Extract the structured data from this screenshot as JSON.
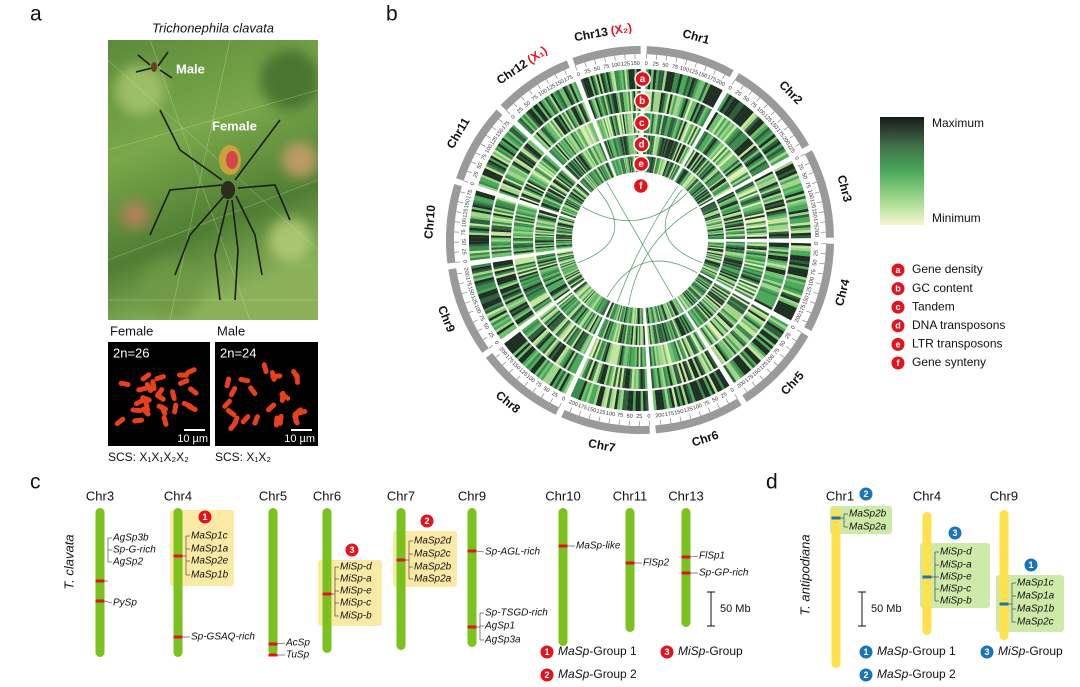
{
  "panel_a": {
    "label": "a",
    "species": "Trichonephila clavata",
    "photo_labels": [
      "Male",
      "Female"
    ],
    "karyotypes": [
      {
        "sex": "Female",
        "count": "2n=26",
        "scale": "10 µm",
        "scs": "SCS: X₁X₁X₂X₂"
      },
      {
        "sex": "Male",
        "count": "2n=24",
        "scale": "10 µm",
        "scs": "SCS: X₁X₂"
      }
    ]
  },
  "panel_b": {
    "label": "b",
    "chromosomes": [
      {
        "name": "Chr1",
        "ticks": [
          0,
          25,
          50,
          75,
          100,
          125,
          150,
          175,
          200
        ]
      },
      {
        "name": "Chr2",
        "ticks": [
          0,
          25,
          50,
          75,
          100,
          125,
          150,
          175,
          200,
          225
        ]
      },
      {
        "name": "Chr3",
        "ticks": [
          0,
          25,
          50,
          75,
          100,
          125,
          150,
          175,
          200
        ]
      },
      {
        "name": "Chr4",
        "ticks": [
          0,
          25,
          50,
          75,
          100,
          125,
          150,
          175,
          200
        ]
      },
      {
        "name": "Chr5",
        "ticks": [
          0,
          25,
          50,
          75,
          100,
          125,
          150,
          175,
          200
        ]
      },
      {
        "name": "Chr6",
        "ticks": [
          0,
          25,
          50,
          75,
          100,
          125,
          150,
          175,
          200
        ]
      },
      {
        "name": "Chr7",
        "ticks": [
          0,
          25,
          50,
          75,
          100,
          125,
          150,
          175,
          200
        ]
      },
      {
        "name": "Chr8",
        "ticks": [
          0,
          25,
          50,
          75,
          100,
          125,
          150,
          175,
          200
        ]
      },
      {
        "name": "Chr9",
        "ticks": [
          0,
          25,
          50,
          75,
          100,
          125,
          150,
          175,
          200
        ]
      },
      {
        "name": "Chr10",
        "ticks": [
          0,
          25,
          50,
          75,
          100,
          125,
          150,
          175
        ]
      },
      {
        "name": "Chr11",
        "ticks": [
          0,
          25,
          50,
          75,
          100,
          125,
          150,
          175
        ]
      },
      {
        "name": "Chr12",
        "sex_label": "(X₁)",
        "ticks": [
          0,
          25,
          50,
          75,
          100,
          125,
          150,
          175
        ]
      },
      {
        "name": "Chr13",
        "sex_label": "(X₂)",
        "ticks": [
          0,
          25,
          50,
          75,
          100,
          125,
          150
        ]
      }
    ],
    "track_letters": [
      "a",
      "b",
      "c",
      "d",
      "e",
      "f"
    ],
    "colorbar": {
      "max": "Maximum",
      "min": "Minimum"
    },
    "legend": [
      {
        "key": "a",
        "text": "Gene density"
      },
      {
        "key": "b",
        "text": "GC content"
      },
      {
        "key": "c",
        "text": "Tandem"
      },
      {
        "key": "d",
        "text": "DNA transposons"
      },
      {
        "key": "e",
        "text": "LTR transposons"
      },
      {
        "key": "f",
        "text": "Gene synteny"
      }
    ]
  },
  "panel_c": {
    "label": "c",
    "species": "T. clavata",
    "scale": "50 Mb",
    "chromosomes": [
      {
        "name": "Chr3",
        "genes": [
          "AgSp3b",
          "Sp-G-rich",
          "AgSp2",
          "PySp"
        ]
      },
      {
        "name": "Chr4",
        "group": "1",
        "genes": [
          "MaSp1c",
          "MaSp1a",
          "MaSp2e",
          "MaSp1b",
          "Sp-GSAQ-rich"
        ]
      },
      {
        "name": "Chr5",
        "genes": [
          "AcSp",
          "TuSp"
        ]
      },
      {
        "name": "Chr6",
        "group": "3",
        "genes": [
          "MiSp-d",
          "MiSp-a",
          "MiSp-e",
          "MiSp-c",
          "MiSp-b"
        ]
      },
      {
        "name": "Chr7",
        "group": "2",
        "genes": [
          "MaSp2d",
          "MaSp2c",
          "MaSp2b",
          "MaSp2a"
        ]
      },
      {
        "name": "Chr9",
        "genes": [
          "Sp-AGL-rich",
          "Sp-TSGD-rich",
          "AgSp1",
          "AgSp3a"
        ]
      },
      {
        "name": "Chr10",
        "genes": [
          "MaSp-like"
        ]
      },
      {
        "name": "Chr11",
        "genes": [
          "FlSp2"
        ]
      },
      {
        "name": "Chr13",
        "genes": [
          "FlSp1",
          "Sp-GP-rich"
        ]
      }
    ],
    "groups": [
      {
        "num": "1",
        "gene": "MaSp",
        "suffix": "-Group 1"
      },
      {
        "num": "2",
        "gene": "MaSp",
        "suffix": "-Group 2"
      },
      {
        "num": "3",
        "gene": "MiSp",
        "suffix": "-Group"
      }
    ]
  },
  "panel_d": {
    "label": "d",
    "species": "T. antipodiana",
    "scale": "50 Mb",
    "chromosomes": [
      {
        "name": "Chr1",
        "group": "2",
        "genes": [
          "MaSp2b",
          "MaSp2a"
        ]
      },
      {
        "name": "Chr4",
        "group": "3",
        "genes": [
          "MiSp-d",
          "MiSp-a",
          "MiSp-e",
          "MiSp-c",
          "MiSp-b"
        ]
      },
      {
        "name": "Chr9",
        "group": "1",
        "genes": [
          "MaSp1c",
          "MaSp1a",
          "MaSp1b",
          "MaSp2c"
        ]
      }
    ],
    "groups": [
      {
        "num": "1",
        "gene": "MaSp",
        "suffix": "-Group 1"
      },
      {
        "num": "2",
        "gene": "MaSp",
        "suffix": "-Group 2"
      },
      {
        "num": "3",
        "gene": "MiSp",
        "suffix": "-Group"
      }
    ]
  }
}
